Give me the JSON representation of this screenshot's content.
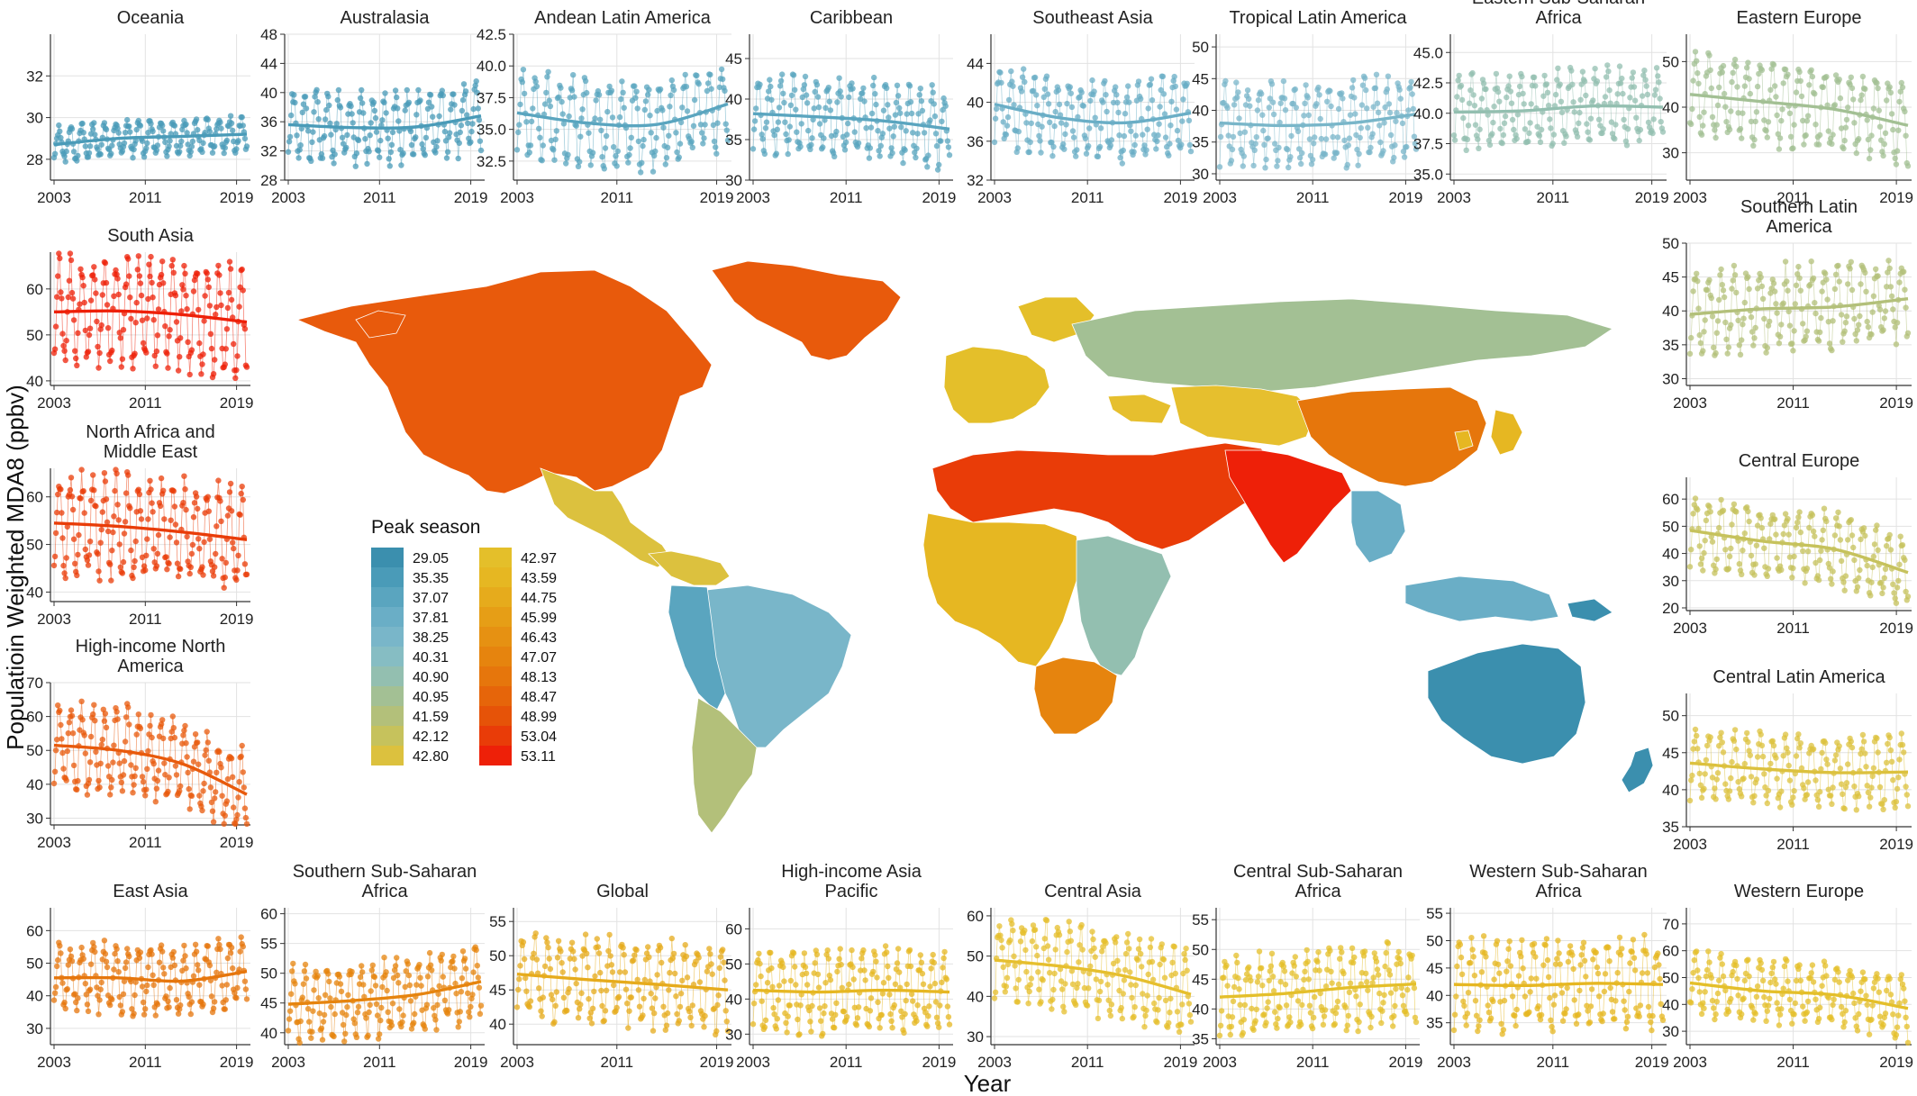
{
  "figure": {
    "y_axis_title": "Populatioin Weighted MDA8 (ppbv)",
    "x_axis_title": "Year"
  },
  "legend": {
    "title": "Peak season",
    "entries": [
      {
        "value": "29.05",
        "color": "#3b8fae"
      },
      {
        "value": "35.35",
        "color": "#4a9bb8"
      },
      {
        "value": "37.07",
        "color": "#5aa5bf"
      },
      {
        "value": "37.81",
        "color": "#6aaec6"
      },
      {
        "value": "38.25",
        "color": "#79b6c9"
      },
      {
        "value": "40.31",
        "color": "#86bdc3"
      },
      {
        "value": "40.90",
        "color": "#93bfb0"
      },
      {
        "value": "40.95",
        "color": "#a3c094"
      },
      {
        "value": "41.59",
        "color": "#b3c07a"
      },
      {
        "value": "42.12",
        "color": "#c6c25c"
      },
      {
        "value": "42.80",
        "color": "#dcc13e"
      },
      {
        "value": "42.97",
        "color": "#e4bf2a"
      },
      {
        "value": "43.59",
        "color": "#e6b722"
      },
      {
        "value": "44.75",
        "color": "#e6ab1c"
      },
      {
        "value": "45.99",
        "color": "#e69e16"
      },
      {
        "value": "46.43",
        "color": "#e69112"
      },
      {
        "value": "47.07",
        "color": "#e6840e"
      },
      {
        "value": "48.13",
        "color": "#e6760c"
      },
      {
        "value": "48.47",
        "color": "#e6650a"
      },
      {
        "value": "48.99",
        "color": "#e65308"
      },
      {
        "value": "53.04",
        "color": "#e93c08"
      },
      {
        "value": "53.11",
        "color": "#ee2008"
      }
    ]
  },
  "map": {
    "regions": [
      {
        "name": "High-income North America",
        "color": "#e85a0c"
      },
      {
        "name": "Greenland",
        "color": "#e85a0c"
      },
      {
        "name": "Central Latin America",
        "color": "#dcc13e"
      },
      {
        "name": "Tropical Latin America",
        "color": "#79b6c9"
      },
      {
        "name": "Andean Latin America",
        "color": "#5aa5bf"
      },
      {
        "name": "Southern Latin America",
        "color": "#b3c07a"
      },
      {
        "name": "Western Europe",
        "color": "#e4bf2a"
      },
      {
        "name": "Eastern Europe",
        "color": "#a3c094"
      },
      {
        "name": "North Africa and Middle East",
        "color": "#e93c08"
      },
      {
        "name": "Western Sub-Saharan Africa",
        "color": "#e6b722"
      },
      {
        "name": "Eastern Sub-Saharan Africa",
        "color": "#93bfb0"
      },
      {
        "name": "Southern Sub-Saharan Africa",
        "color": "#e6840e"
      },
      {
        "name": "Central Asia",
        "color": "#e6bf2e"
      },
      {
        "name": "South Asia",
        "color": "#ee2008"
      },
      {
        "name": "East Asia",
        "color": "#e6760c"
      },
      {
        "name": "High-income Asia Pacific",
        "color": "#e6b722"
      },
      {
        "name": "Southeast Asia",
        "color": "#6aaec6"
      },
      {
        "name": "Australasia",
        "color": "#3b8fae"
      },
      {
        "name": "Oceania",
        "color": "#3b8fae"
      }
    ]
  },
  "chart_data": [
    {
      "type": "line",
      "title": "Oceania",
      "ylim": [
        27,
        34
      ],
      "yticks": [
        28,
        30,
        32
      ],
      "xticks": [
        2003,
        2011,
        2019
      ],
      "color": "#4a9bb8",
      "mean": 29.0,
      "amp": 0.9,
      "trend": [
        28.7,
        29.0,
        29.1,
        29.2
      ],
      "series": [
        {
          "values": []
        }
      ]
    },
    {
      "type": "line",
      "title": "Australasia",
      "ylim": [
        28,
        48
      ],
      "yticks": [
        28,
        32,
        36,
        40,
        44,
        48
      ],
      "xticks": [
        2003,
        2011,
        2019
      ],
      "color": "#4a9bb8",
      "mean": 35.5,
      "amp": 5.0,
      "trend": [
        35.6,
        35.2,
        35.3,
        36.8
      ],
      "series": [
        {
          "values": []
        }
      ]
    },
    {
      "type": "line",
      "title": "Andean Latin America",
      "ylim": [
        31,
        42.5
      ],
      "yticks": [
        32.5,
        35.0,
        37.5,
        40.0,
        42.5
      ],
      "xticks": [
        2003,
        2011,
        2019
      ],
      "color": "#5aa5bf",
      "mean": 36.0,
      "amp": 3.6,
      "trend": [
        36.3,
        35.5,
        35.4,
        37.0
      ],
      "series": [
        {
          "values": []
        }
      ]
    },
    {
      "type": "line",
      "title": "Caribbean",
      "ylim": [
        30,
        48
      ],
      "yticks": [
        30,
        35,
        40,
        45
      ],
      "xticks": [
        2003,
        2011,
        2019
      ],
      "color": "#5aa5bf",
      "mean": 37.5,
      "amp": 5.0,
      "trend": [
        38.2,
        37.8,
        37.3,
        36.3
      ],
      "series": [
        {
          "values": []
        }
      ]
    },
    {
      "type": "line",
      "title": "Southeast Asia",
      "ylim": [
        32,
        47
      ],
      "yticks": [
        32,
        36,
        40,
        44
      ],
      "xticks": [
        2003,
        2011,
        2019
      ],
      "color": "#6aaec6",
      "mean": 38.8,
      "amp": 4.2,
      "trend": [
        39.8,
        38.4,
        37.9,
        38.9
      ],
      "series": [
        {
          "values": []
        }
      ]
    },
    {
      "type": "line",
      "title": "Tropical Latin America",
      "ylim": [
        29,
        52
      ],
      "yticks": [
        30,
        35,
        40,
        45,
        50
      ],
      "xticks": [
        2003,
        2011,
        2019
      ],
      "color": "#79b6c9",
      "mean": 38.5,
      "amp": 7.0,
      "trend": [
        38.0,
        37.6,
        38.0,
        39.4
      ],
      "series": [
        {
          "values": []
        }
      ]
    },
    {
      "type": "line",
      "title": "Eastern Sub-Saharan Africa",
      "ylim": [
        34.5,
        46.5
      ],
      "yticks": [
        35.0,
        37.5,
        40.0,
        42.5,
        45.0
      ],
      "xticks": [
        2003,
        2011,
        2019
      ],
      "color": "#93bfb0",
      "mean": 40.3,
      "amp": 3.2,
      "trend": [
        40.1,
        40.2,
        40.6,
        40.5
      ],
      "series": [
        {
          "values": []
        }
      ]
    },
    {
      "type": "line",
      "title": "Eastern Europe",
      "ylim": [
        24,
        56
      ],
      "yticks": [
        30,
        40,
        50
      ],
      "xticks": [
        2003,
        2011,
        2019
      ],
      "color": "#a3c094",
      "mean": 39.5,
      "amp": 9.5,
      "trend": [
        42.8,
        41.2,
        39.5,
        36.0
      ],
      "series": [
        {
          "values": []
        }
      ]
    },
    {
      "type": "line",
      "title": "South Asia",
      "ylim": [
        39,
        68
      ],
      "yticks": [
        40,
        50,
        60
      ],
      "xticks": [
        2003,
        2011,
        2019
      ],
      "color": "#ee2008",
      "mean": 54.0,
      "amp": 12.5,
      "trend": [
        55.0,
        55.2,
        54.4,
        52.8
      ],
      "series": [
        {
          "values": []
        }
      ]
    },
    {
      "type": "line",
      "title": "North Africa and Middle East",
      "ylim": [
        38,
        66
      ],
      "yticks": [
        40,
        50,
        60
      ],
      "xticks": [
        2003,
        2011,
        2019
      ],
      "color": "#e93c08",
      "mean": 53.0,
      "amp": 11.5,
      "trend": [
        54.5,
        53.8,
        52.6,
        51.0
      ],
      "series": [
        {
          "values": []
        }
      ]
    },
    {
      "type": "line",
      "title": "High-income North America",
      "ylim": [
        28,
        70
      ],
      "yticks": [
        30,
        40,
        50,
        60,
        70
      ],
      "xticks": [
        2003,
        2011,
        2019
      ],
      "color": "#e85a0c",
      "mean": 48.0,
      "amp": 13.5,
      "trend": [
        51.5,
        50.0,
        46.0,
        37.0
      ],
      "series": [
        {
          "values": []
        }
      ]
    },
    {
      "type": "line",
      "title": "Southern Latin America",
      "ylim": [
        29,
        50
      ],
      "yticks": [
        30,
        35,
        40,
        45,
        50
      ],
      "xticks": [
        2003,
        2011,
        2019
      ],
      "color": "#b3c07a",
      "mean": 40.0,
      "amp": 6.5,
      "trend": [
        39.5,
        40.3,
        40.6,
        41.8
      ],
      "series": [
        {
          "values": []
        }
      ]
    },
    {
      "type": "line",
      "title": "Central Europe",
      "ylim": [
        19,
        68
      ],
      "yticks": [
        20,
        30,
        40,
        50,
        60
      ],
      "xticks": [
        2003,
        2011,
        2019
      ],
      "color": "#c6c25c",
      "mean": 42.0,
      "amp": 14.0,
      "trend": [
        48.5,
        44.5,
        41.5,
        33.0
      ],
      "series": [
        {
          "values": []
        }
      ]
    },
    {
      "type": "line",
      "title": "Central Latin America",
      "ylim": [
        35,
        53
      ],
      "yticks": [
        35,
        40,
        45,
        50
      ],
      "xticks": [
        2003,
        2011,
        2019
      ],
      "color": "#dcc13e",
      "mean": 42.8,
      "amp": 5.0,
      "trend": [
        43.6,
        42.8,
        42.3,
        42.4
      ],
      "series": [
        {
          "values": []
        }
      ]
    },
    {
      "type": "line",
      "title": "East Asia",
      "ylim": [
        25,
        67
      ],
      "yticks": [
        30,
        40,
        50,
        60
      ],
      "xticks": [
        2003,
        2011,
        2019
      ],
      "color": "#e6760c",
      "mean": 46.0,
      "amp": 11.0,
      "trend": [
        45.5,
        45.5,
        44.5,
        47.5
      ],
      "series": [
        {
          "values": []
        }
      ]
    },
    {
      "type": "line",
      "title": "Southern Sub-Saharan Africa",
      "ylim": [
        38,
        61
      ],
      "yticks": [
        40,
        45,
        50,
        55,
        60
      ],
      "xticks": [
        2003,
        2011,
        2019
      ],
      "color": "#e6840e",
      "mean": 46.5,
      "amp": 6.5,
      "trend": [
        44.8,
        45.4,
        46.4,
        48.6
      ],
      "series": [
        {
          "values": []
        }
      ]
    },
    {
      "type": "line",
      "title": "Global",
      "ylim": [
        37,
        57
      ],
      "yticks": [
        40,
        45,
        50,
        55
      ],
      "xticks": [
        2003,
        2011,
        2019
      ],
      "color": "#e6ab1c",
      "mean": 46.0,
      "amp": 6.5,
      "trend": [
        47.3,
        46.5,
        45.8,
        45.0
      ],
      "series": [
        {
          "values": []
        }
      ]
    },
    {
      "type": "line",
      "title": "High-income Asia Pacific",
      "ylim": [
        27,
        66
      ],
      "yticks": [
        30,
        40,
        50,
        60
      ],
      "xticks": [
        2003,
        2011,
        2019
      ],
      "color": "#e6b722",
      "mean": 42.5,
      "amp": 12.0,
      "trend": [
        42.5,
        42.0,
        42.5,
        42.0
      ],
      "series": [
        {
          "values": []
        }
      ]
    },
    {
      "type": "line",
      "title": "Central Asia",
      "ylim": [
        28,
        62
      ],
      "yticks": [
        30,
        40,
        50,
        60
      ],
      "xticks": [
        2003,
        2011,
        2019
      ],
      "color": "#e6bf2e",
      "mean": 46.0,
      "amp": 11.0,
      "trend": [
        49.0,
        47.5,
        45.0,
        40.5
      ],
      "series": [
        {
          "values": []
        }
      ]
    },
    {
      "type": "line",
      "title": "Central Sub-Saharan Africa",
      "ylim": [
        34,
        57
      ],
      "yticks": [
        35,
        40,
        45,
        50,
        55
      ],
      "xticks": [
        2003,
        2011,
        2019
      ],
      "color": "#e4bf2a",
      "mean": 43.0,
      "amp": 7.0,
      "trend": [
        42.0,
        42.6,
        43.6,
        44.2
      ],
      "series": [
        {
          "values": []
        }
      ]
    },
    {
      "type": "line",
      "title": "Western Sub-Saharan Africa",
      "ylim": [
        31,
        56
      ],
      "yticks": [
        35,
        40,
        45,
        50,
        55
      ],
      "xticks": [
        2003,
        2011,
        2019
      ],
      "color": "#e6b722",
      "mean": 42.0,
      "amp": 8.5,
      "trend": [
        42.0,
        41.8,
        42.2,
        42.0
      ],
      "series": [
        {
          "values": []
        }
      ]
    },
    {
      "type": "line",
      "title": "Western Europe",
      "ylim": [
        25,
        76
      ],
      "yticks": [
        30,
        40,
        50,
        60,
        70
      ],
      "xticks": [
        2003,
        2011,
        2019
      ],
      "color": "#e4bf2a",
      "mean": 45.0,
      "amp": 12.0,
      "trend": [
        48.0,
        45.0,
        43.5,
        38.5
      ],
      "series": [
        {
          "values": []
        }
      ]
    }
  ]
}
